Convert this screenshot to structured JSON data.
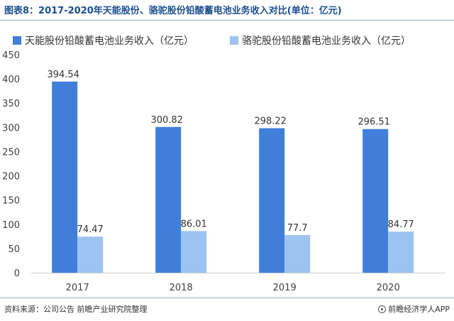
{
  "title": "图表8：2017-2020年天能股份、骆驼股份铅酸蓄电池业务收入对比(单位：亿元)",
  "source": "资料来源：公司公告 前瞻产业研究院整理",
  "brand": "前瞻经济学人APP",
  "colors": {
    "series1": "#3f7fd9",
    "series2": "#9dc3f0",
    "title": "#1b4f8f",
    "rule": "#8eb3da"
  },
  "chart_data": {
    "type": "bar",
    "categories": [
      "2017",
      "2018",
      "2019",
      "2020"
    ],
    "series": [
      {
        "name": "天能股份铅酸蓄电池业务收入（亿元）",
        "values": [
          394.54,
          300.82,
          298.22,
          296.51
        ],
        "labels": [
          "394.54",
          "300.82",
          "298.22",
          "296.51"
        ]
      },
      {
        "name": "骆驼股份铅酸蓄电池业务收入（亿元）",
        "values": [
          74.47,
          86.01,
          77.7,
          84.77
        ],
        "labels": [
          "74.47",
          "86.01",
          "77.7",
          "84.77"
        ]
      }
    ],
    "ylim": [
      0,
      450
    ],
    "yticks": [
      0,
      50,
      100,
      150,
      200,
      250,
      300,
      350,
      400,
      450
    ],
    "grid": false,
    "legend": "top"
  }
}
